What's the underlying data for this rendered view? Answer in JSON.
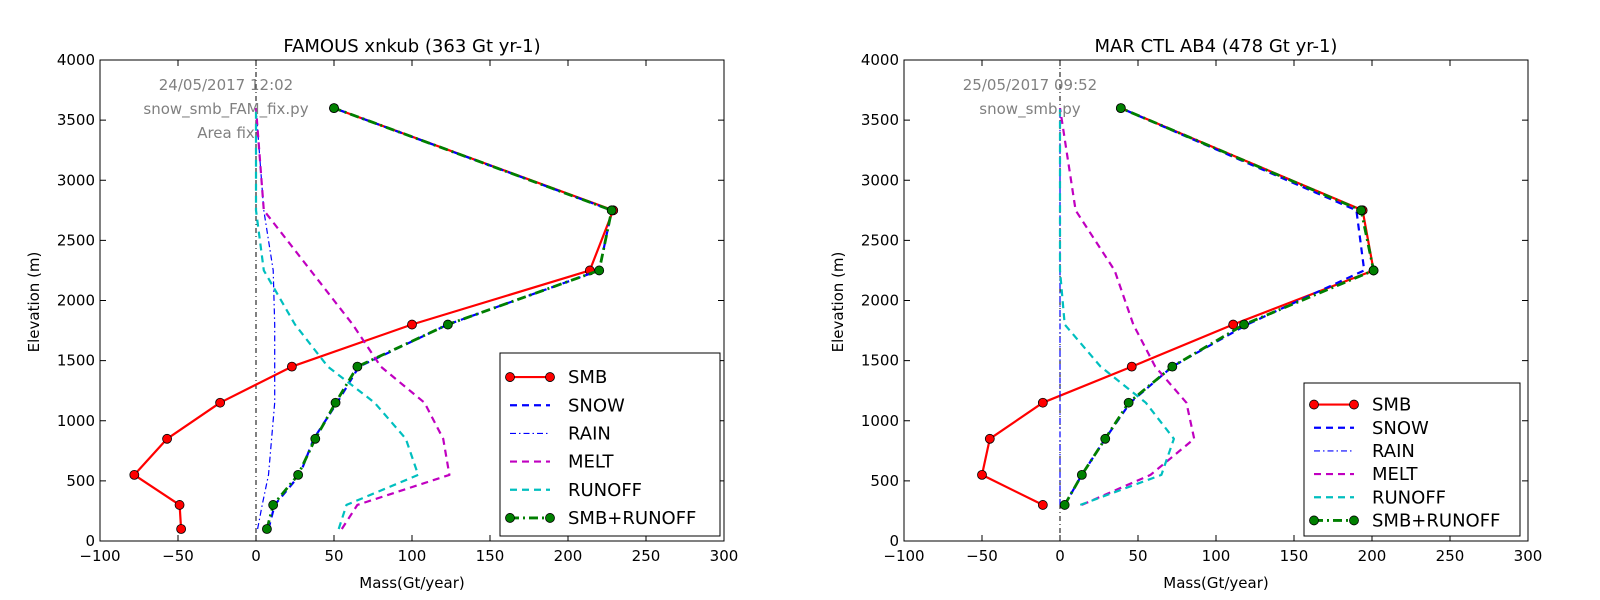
{
  "chart_data": [
    {
      "type": "line",
      "title": "FAMOUS xnkub (363 Gt yr-1)",
      "xlabel": "Mass(Gt/year)",
      "ylabel": "Elevation (m)",
      "xlim": [
        -100,
        300
      ],
      "ylim": [
        0,
        4000
      ],
      "xticks": [
        -100,
        -50,
        0,
        50,
        100,
        150,
        200,
        250,
        300
      ],
      "yticks": [
        0,
        500,
        1000,
        1500,
        2000,
        2500,
        3000,
        3500,
        4000
      ],
      "grid": false,
      "legend_position": "lower-right",
      "annotations": [
        "24/05/2017 12:02",
        "snow_smb_FAM_fix.py",
        "Area fix"
      ],
      "series": [
        {
          "name": "SMB",
          "style": "solid-marker",
          "color": "#ff0000",
          "x": [
            -48,
            -49,
            -78,
            -57,
            -23,
            23,
            100,
            214,
            229,
            50
          ],
          "y": [
            100,
            300,
            550,
            850,
            1150,
            1450,
            1800,
            2250,
            2750,
            3600
          ]
        },
        {
          "name": "SNOW",
          "style": "dashed",
          "color": "#0000ff",
          "x": [
            8,
            12,
            28,
            37,
            52,
            66,
            123,
            220,
            228,
            50
          ],
          "y": [
            100,
            300,
            550,
            850,
            1150,
            1450,
            1800,
            2250,
            2750,
            3600
          ]
        },
        {
          "name": "RAIN",
          "style": "dashdot-thin",
          "color": "#0000ff",
          "x": [
            1,
            4,
            8,
            10,
            12,
            12,
            12,
            11,
            5,
            0
          ],
          "y": [
            100,
            300,
            550,
            850,
            1150,
            1450,
            1800,
            2250,
            2750,
            3600
          ]
        },
        {
          "name": "MELT",
          "style": "dashed",
          "color": "#c000c0",
          "x": [
            55,
            65,
            124,
            120,
            108,
            80,
            62,
            35,
            5,
            0
          ],
          "y": [
            100,
            300,
            550,
            850,
            1150,
            1450,
            1800,
            2250,
            2750,
            3600
          ]
        },
        {
          "name": "RUNOFF",
          "style": "dashed",
          "color": "#00bfbf",
          "x": [
            53,
            58,
            104,
            96,
            76,
            46,
            25,
            5,
            0,
            0
          ],
          "y": [
            100,
            300,
            550,
            850,
            1150,
            1450,
            1800,
            2250,
            2750,
            3600
          ]
        },
        {
          "name": "SMB+RUNOFF",
          "style": "dashdot-marker",
          "color": "#007f00",
          "marker_color": "#008000",
          "x": [
            7,
            11,
            27,
            38,
            51,
            65,
            123,
            220,
            228,
            50
          ],
          "y": [
            100,
            300,
            550,
            850,
            1150,
            1450,
            1800,
            2250,
            2750,
            3600
          ]
        }
      ]
    },
    {
      "type": "line",
      "title": "MAR CTL AB4 (478 Gt yr-1)",
      "xlabel": "Mass(Gt/year)",
      "ylabel": "Elevation (m)",
      "xlim": [
        -100,
        300
      ],
      "ylim": [
        0,
        4000
      ],
      "xticks": [
        -100,
        -50,
        0,
        50,
        100,
        150,
        200,
        250,
        300
      ],
      "yticks": [
        0,
        500,
        1000,
        1500,
        2000,
        2500,
        3000,
        3500,
        4000
      ],
      "grid": false,
      "legend_position": "lower-right",
      "annotations": [
        "25/05/2017 09:52",
        "snow_smb.py"
      ],
      "series": [
        {
          "name": "SMB",
          "style": "solid-marker",
          "color": "#ff0000",
          "x": [
            -11,
            -50,
            -45,
            -11,
            46,
            111,
            201,
            194,
            39
          ],
          "y": [
            300,
            550,
            850,
            1150,
            1450,
            1800,
            2250,
            2750,
            3600
          ]
        },
        {
          "name": "SNOW",
          "style": "dashed",
          "color": "#0000ff",
          "x": [
            3,
            14,
            29,
            45,
            72,
            120,
            195,
            190,
            39
          ],
          "y": [
            300,
            550,
            850,
            1150,
            1450,
            1800,
            2250,
            2750,
            3600
          ]
        },
        {
          "name": "RAIN",
          "style": "dashdot-thin",
          "color": "#0000ff",
          "x": [
            0,
            0,
            0,
            0,
            0,
            0,
            0,
            0,
            0
          ],
          "y": [
            300,
            550,
            850,
            1150,
            1450,
            1800,
            2250,
            2750,
            3600
          ]
        },
        {
          "name": "MELT",
          "style": "dashed",
          "color": "#c000c0",
          "x": [
            14,
            58,
            86,
            81,
            61,
            47,
            35,
            10,
            0
          ],
          "y": [
            300,
            550,
            850,
            1150,
            1450,
            1800,
            2250,
            2750,
            3600
          ]
        },
        {
          "name": "RUNOFF",
          "style": "dashed",
          "color": "#00bfbf",
          "x": [
            13,
            65,
            73,
            55,
            26,
            3,
            0,
            0,
            0
          ],
          "y": [
            300,
            550,
            850,
            1150,
            1450,
            1800,
            2250,
            2750,
            3600
          ]
        },
        {
          "name": "SMB+RUNOFF",
          "style": "dashdot-marker",
          "color": "#007f00",
          "marker_color": "#008000",
          "x": [
            3,
            14,
            29,
            44,
            72,
            118,
            201,
            193,
            39
          ],
          "y": [
            300,
            550,
            850,
            1150,
            1450,
            1800,
            2250,
            2750,
            3600
          ]
        }
      ]
    }
  ]
}
